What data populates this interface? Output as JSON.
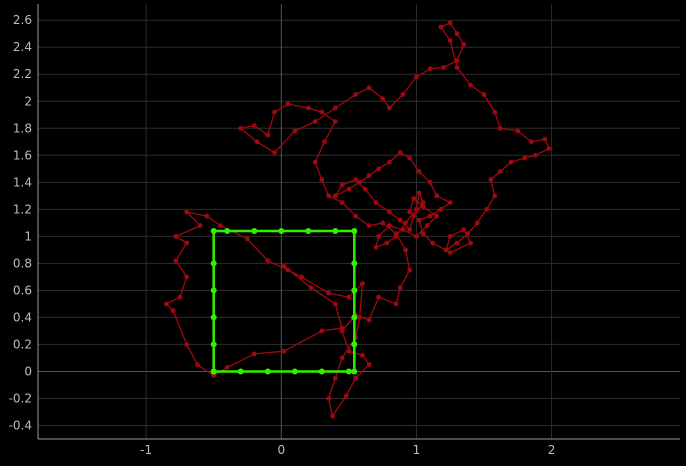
{
  "chart_data": {
    "type": "scatter",
    "title": "",
    "xlabel": "",
    "ylabel": "",
    "xlim": [
      -1.8,
      2.95
    ],
    "ylim": [
      -0.5,
      2.72
    ],
    "grid": true,
    "x_ticks": [
      -1,
      0,
      1,
      2
    ],
    "x_tick_labels": [
      "-1",
      "0",
      "1",
      "2"
    ],
    "y_ticks": [
      -0.4,
      -0.2,
      0,
      0.2,
      0.4,
      0.6,
      0.8,
      1,
      1.2,
      1.4,
      1.6,
      1.8,
      2,
      2.2,
      2.4,
      2.6
    ],
    "y_tick_labels": [
      "-0.4",
      "-0.2",
      "0",
      "0.2",
      "0.4",
      "0.6",
      "0.8",
      "1",
      "1.2",
      "1.4",
      "1.6",
      "1.8",
      "2",
      "2.2",
      "2.4",
      "2.6"
    ],
    "colors": {
      "background": "#000000",
      "grid": "#2e2e2e",
      "zero_line": "#555555",
      "axis": "#9a9a9a",
      "walk": "#a0080f",
      "square": "#33ee00"
    },
    "series": [
      {
        "style": "line+markers",
        "color": "#a0080f",
        "points": [
          [
            0.02,
            0.78
          ],
          [
            0.22,
            0.62
          ],
          [
            0.4,
            0.5
          ],
          [
            0.45,
            0.32
          ],
          [
            0.3,
            0.3
          ],
          [
            0.02,
            0.15
          ],
          [
            -0.2,
            0.13
          ],
          [
            -0.4,
            0.03
          ],
          [
            -0.5,
            -0.03
          ],
          [
            -0.62,
            0.05
          ],
          [
            -0.7,
            0.2
          ],
          [
            -0.8,
            0.45
          ],
          [
            -0.85,
            0.5
          ],
          [
            -0.75,
            0.55
          ],
          [
            -0.7,
            0.7
          ],
          [
            -0.78,
            0.82
          ],
          [
            -0.7,
            0.95
          ],
          [
            -0.78,
            1.0
          ],
          [
            -0.6,
            1.08
          ],
          [
            -0.7,
            1.18
          ],
          [
            -0.55,
            1.15
          ],
          [
            -0.45,
            1.08
          ],
          [
            -0.25,
            0.98
          ],
          [
            -0.1,
            0.82
          ],
          [
            0.05,
            0.75
          ],
          [
            0.15,
            0.7
          ],
          [
            0.35,
            0.58
          ],
          [
            0.5,
            0.55
          ],
          [
            0.6,
            0.65
          ],
          [
            0.58,
            0.4
          ],
          [
            0.55,
            0.25
          ],
          [
            0.45,
            0.1
          ],
          [
            0.4,
            -0.05
          ],
          [
            0.35,
            -0.2
          ],
          [
            0.38,
            -0.33
          ],
          [
            0.48,
            -0.18
          ],
          [
            0.55,
            -0.05
          ],
          [
            0.65,
            0.05
          ],
          [
            0.6,
            0.12
          ],
          [
            0.5,
            0.15
          ],
          [
            0.45,
            0.3
          ],
          [
            0.55,
            0.42
          ],
          [
            0.65,
            0.38
          ],
          [
            0.72,
            0.55
          ],
          [
            0.85,
            0.5
          ],
          [
            0.88,
            0.62
          ],
          [
            0.95,
            0.75
          ],
          [
            0.92,
            0.9
          ],
          [
            0.85,
            1.02
          ],
          [
            0.75,
            1.1
          ],
          [
            0.65,
            1.08
          ],
          [
            0.55,
            1.15
          ],
          [
            0.45,
            1.25
          ],
          [
            0.35,
            1.3
          ],
          [
            0.3,
            1.42
          ],
          [
            0.25,
            1.55
          ],
          [
            0.32,
            1.7
          ],
          [
            0.4,
            1.85
          ],
          [
            0.3,
            1.92
          ],
          [
            0.2,
            1.95
          ],
          [
            0.05,
            1.98
          ],
          [
            -0.05,
            1.92
          ],
          [
            -0.1,
            1.75
          ],
          [
            -0.2,
            1.82
          ],
          [
            -0.3,
            1.8
          ],
          [
            -0.18,
            1.7
          ],
          [
            -0.05,
            1.62
          ],
          [
            0.1,
            1.78
          ],
          [
            0.25,
            1.85
          ],
          [
            0.4,
            1.95
          ],
          [
            0.55,
            2.05
          ],
          [
            0.65,
            2.1
          ],
          [
            0.75,
            2.02
          ],
          [
            0.8,
            1.95
          ],
          [
            0.9,
            2.05
          ],
          [
            1.0,
            2.18
          ],
          [
            1.1,
            2.24
          ],
          [
            1.2,
            2.25
          ],
          [
            1.3,
            2.3
          ],
          [
            1.35,
            2.42
          ],
          [
            1.3,
            2.5
          ],
          [
            1.25,
            2.58
          ],
          [
            1.18,
            2.55
          ],
          [
            1.25,
            2.45
          ],
          [
            1.3,
            2.25
          ],
          [
            1.4,
            2.12
          ],
          [
            1.5,
            2.05
          ],
          [
            1.58,
            1.92
          ],
          [
            1.62,
            1.8
          ],
          [
            1.75,
            1.78
          ],
          [
            1.85,
            1.7
          ],
          [
            1.95,
            1.72
          ],
          [
            1.98,
            1.65
          ],
          [
            1.88,
            1.6
          ],
          [
            1.8,
            1.58
          ],
          [
            1.7,
            1.55
          ],
          [
            1.62,
            1.48
          ],
          [
            1.55,
            1.42
          ],
          [
            1.58,
            1.3
          ],
          [
            1.52,
            1.2
          ],
          [
            1.45,
            1.1
          ],
          [
            1.38,
            1.02
          ],
          [
            1.3,
            0.95
          ],
          [
            1.22,
            0.9
          ],
          [
            1.25,
            1.0
          ],
          [
            1.35,
            1.05
          ],
          [
            1.4,
            0.95
          ],
          [
            1.25,
            0.88
          ],
          [
            1.12,
            0.95
          ],
          [
            1.05,
            1.02
          ],
          [
            1.02,
            1.12
          ],
          [
            1.1,
            1.15
          ],
          [
            1.18,
            1.2
          ],
          [
            1.25,
            1.25
          ],
          [
            1.15,
            1.3
          ],
          [
            1.1,
            1.4
          ],
          [
            1.02,
            1.48
          ],
          [
            0.95,
            1.58
          ],
          [
            0.88,
            1.62
          ],
          [
            0.8,
            1.55
          ],
          [
            0.72,
            1.5
          ],
          [
            0.65,
            1.45
          ],
          [
            0.58,
            1.4
          ],
          [
            0.5,
            1.35
          ],
          [
            0.4,
            1.3
          ],
          [
            0.45,
            1.38
          ],
          [
            0.55,
            1.42
          ],
          [
            0.62,
            1.35
          ],
          [
            0.7,
            1.25
          ],
          [
            0.8,
            1.18
          ],
          [
            0.88,
            1.12
          ],
          [
            0.95,
            1.05
          ],
          [
            0.98,
            1.15
          ],
          [
            1.05,
            1.25
          ],
          [
            1.02,
            1.32
          ],
          [
            1.0,
            1.2
          ],
          [
            0.92,
            1.1
          ],
          [
            0.85,
            1.0
          ],
          [
            0.78,
            0.95
          ],
          [
            0.7,
            0.92
          ],
          [
            0.72,
            1.0
          ],
          [
            0.8,
            1.08
          ],
          [
            0.9,
            1.05
          ],
          [
            1.0,
            1.0
          ],
          [
            1.08,
            1.08
          ],
          [
            1.15,
            1.15
          ],
          [
            1.05,
            1.22
          ],
          [
            0.98,
            1.28
          ],
          [
            0.95,
            1.18
          ]
        ]
      },
      {
        "style": "line+markers",
        "color": "#33ee00",
        "points": [
          [
            -0.5,
            0.0
          ],
          [
            -0.3,
            0.0
          ],
          [
            -0.1,
            0.0
          ],
          [
            0.1,
            0.0
          ],
          [
            0.3,
            0.0
          ],
          [
            0.5,
            0.0
          ],
          [
            0.54,
            0.0
          ],
          [
            0.54,
            0.2
          ],
          [
            0.54,
            0.4
          ],
          [
            0.54,
            0.6
          ],
          [
            0.54,
            0.8
          ],
          [
            0.54,
            1.04
          ],
          [
            0.4,
            1.04
          ],
          [
            0.2,
            1.04
          ],
          [
            0.0,
            1.04
          ],
          [
            -0.2,
            1.04
          ],
          [
            -0.4,
            1.04
          ],
          [
            -0.5,
            1.04
          ],
          [
            -0.5,
            0.8
          ],
          [
            -0.5,
            0.6
          ],
          [
            -0.5,
            0.4
          ],
          [
            -0.5,
            0.2
          ],
          [
            -0.5,
            0.0
          ]
        ]
      }
    ]
  }
}
